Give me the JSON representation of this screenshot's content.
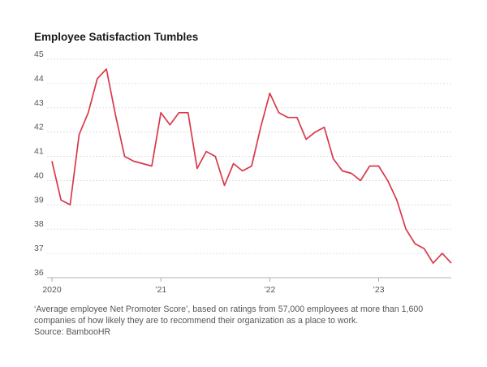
{
  "title": "Employee Satisfaction Tumbles",
  "note": "‘Average employee Net Promoter Score’, based on ratings from 57,000 employees at more than 1,600 companies of how likely they are to recommend their organization as a place to work.",
  "source": "Source: BambooHR",
  "colors": {
    "line": "#d9384a",
    "grid": "#d9d9d9",
    "text": "#555555"
  },
  "chart_data": {
    "type": "line",
    "title": "Employee Satisfaction Tumbles",
    "xlabel": "",
    "ylabel": "",
    "ylim": [
      36,
      45
    ],
    "yticks": [
      36,
      37,
      38,
      39,
      40,
      41,
      42,
      43,
      44,
      45
    ],
    "xticks": [
      {
        "label": "2020",
        "month": "2020-01"
      },
      {
        "label": "’21",
        "month": "2021-01"
      },
      {
        "label": "’22",
        "month": "2022-01"
      },
      {
        "label": "’23",
        "month": "2023-01"
      }
    ],
    "grid": true,
    "x": [
      "2020-01",
      "2020-02",
      "2020-03",
      "2020-04",
      "2020-05",
      "2020-06",
      "2020-07",
      "2020-08",
      "2020-09",
      "2020-10",
      "2020-11",
      "2020-12",
      "2021-01",
      "2021-02",
      "2021-03",
      "2021-04",
      "2021-05",
      "2021-06",
      "2021-07",
      "2021-08",
      "2021-09",
      "2021-10",
      "2021-11",
      "2021-12",
      "2022-01",
      "2022-02",
      "2022-03",
      "2022-04",
      "2022-05",
      "2022-06",
      "2022-07",
      "2022-08",
      "2022-09",
      "2022-10",
      "2022-11",
      "2022-12",
      "2023-01",
      "2023-02",
      "2023-03",
      "2023-04",
      "2023-05",
      "2023-06",
      "2023-07",
      "2023-08",
      "2023-09"
    ],
    "series": [
      {
        "values": [
          40.8,
          39.2,
          39.0,
          41.9,
          42.8,
          44.2,
          44.6,
          42.7,
          41.0,
          40.8,
          40.7,
          40.6,
          42.8,
          42.3,
          42.8,
          42.8,
          40.5,
          41.2,
          41.0,
          39.8,
          40.7,
          40.4,
          40.6,
          42.2,
          43.6,
          42.8,
          42.6,
          42.6,
          41.7,
          42.0,
          42.2,
          40.9,
          40.4,
          40.3,
          40.0,
          40.6,
          40.6,
          40.0,
          39.2,
          38.0,
          37.4,
          37.2,
          36.6,
          37.0,
          36.6
        ]
      }
    ]
  }
}
